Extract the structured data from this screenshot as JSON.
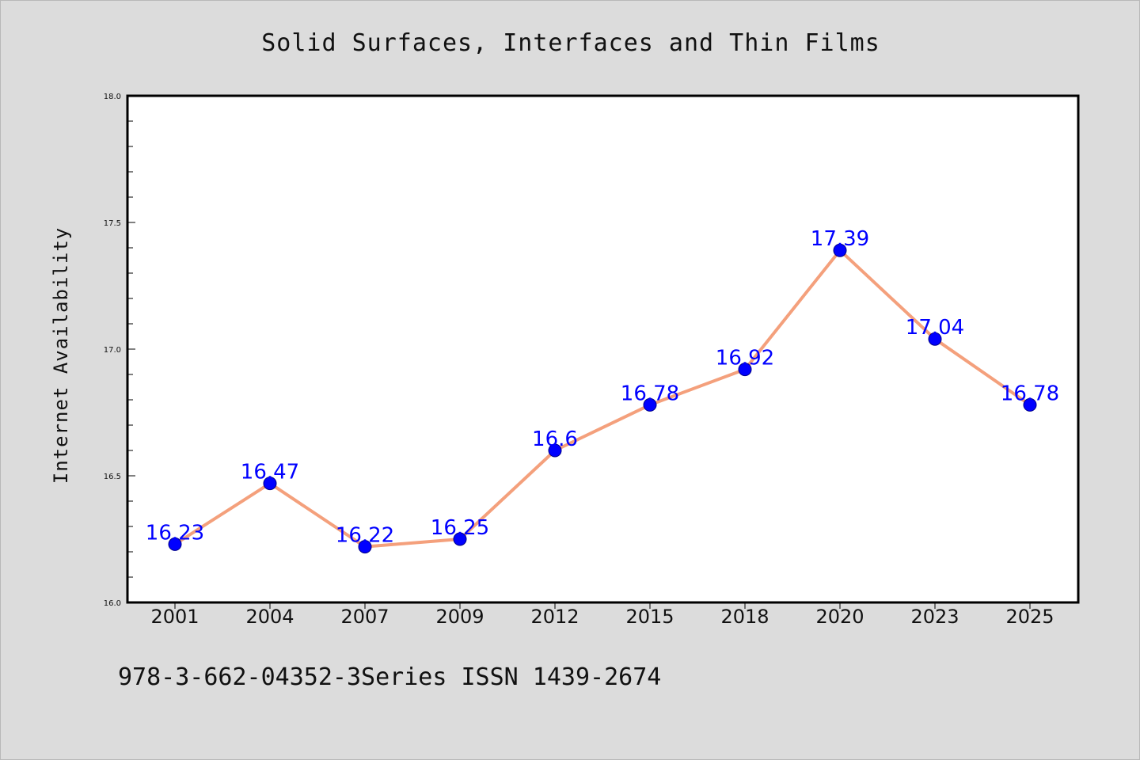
{
  "chart_data": {
    "type": "line",
    "title": "Solid Surfaces, Interfaces and Thin Films",
    "xlabel": "",
    "ylabel": "Internet Availability",
    "categories": [
      "2001",
      "2004",
      "2007",
      "2009",
      "2012",
      "2015",
      "2018",
      "2020",
      "2023",
      "2025"
    ],
    "series": [
      {
        "values": [
          16.23,
          16.47,
          16.22,
          16.25,
          16.6,
          16.78,
          16.92,
          17.39,
          17.04,
          16.78
        ],
        "labels": [
          "16.23",
          "16.47",
          "16.22",
          "16.25",
          "16.6",
          "16.78",
          "16.92",
          "17.39",
          "17.04",
          "16.78"
        ],
        "line_color": "#f4a07c",
        "marker_color": "#0000ff"
      }
    ],
    "ylim": [
      16.0,
      18.0
    ],
    "yticks": [
      "16.0",
      "16.5",
      "17.0",
      "17.5",
      "18.0"
    ],
    "grid": false,
    "legend": "none"
  },
  "footer": {
    "text": "978-3-662-04352-3Series ISSN 1439-2674"
  },
  "colors": {
    "background": "#dcdcdc",
    "plot_background": "#ffffff",
    "line": "#f4a07c",
    "marker": "#0000ff",
    "data_label": "#0000ff"
  }
}
